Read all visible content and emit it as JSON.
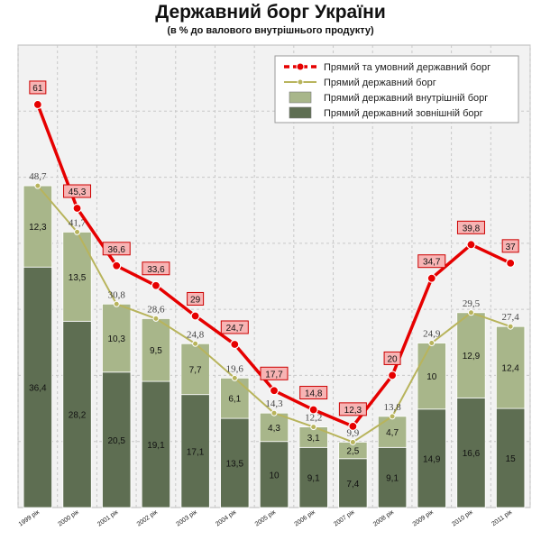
{
  "title": "Державний борг України",
  "subtitle": "(в % до валового внутрішнього продукту)",
  "chart_data": {
    "type": "bar",
    "stacked": true,
    "categories": [
      "1999 рік",
      "2000 рік",
      "2001 рік",
      "2002 рік",
      "2003 рік",
      "2004 рік",
      "2005 рік",
      "2006 рік",
      "2007 рік",
      "2008 рік",
      "2009 рік",
      "2010 рік",
      "2011 рік"
    ],
    "ylim": [
      0,
      70
    ],
    "grid": true,
    "legend_position": "top-right",
    "legend": [
      "Прямий та умовний державний борг",
      "Прямий державний борг",
      "Прямий державний внутрішній борг",
      "Прямий державний зовнішній борг"
    ],
    "series": [
      {
        "name": "Прямий державний зовнішній борг",
        "kind": "bar",
        "color": "#5e6e52",
        "values": [
          36.4,
          28.2,
          20.5,
          19.1,
          17.1,
          13.5,
          10,
          9.1,
          7.4,
          9.1,
          14.9,
          16.6,
          15
        ],
        "labels": [
          "36,4",
          "28,2",
          "20,5",
          "19,1",
          "17,1",
          "13,5",
          "10",
          "9,1",
          "7,4",
          "9,1",
          "14,9",
          "16,6",
          "15"
        ]
      },
      {
        "name": "Прямий державний внутрішній борг",
        "kind": "bar",
        "color": "#a8b68a",
        "values": [
          12.3,
          13.5,
          10.3,
          9.5,
          7.7,
          6.1,
          4.3,
          3.1,
          2.5,
          4.7,
          10,
          12.9,
          12.4
        ],
        "labels": [
          "12,3",
          "13,5",
          "10,3",
          "9,5",
          "7,7",
          "6,1",
          "4,3",
          "3,1",
          "2,5",
          "4,7",
          "10",
          "12,9",
          "12,4"
        ]
      },
      {
        "name": "Прямий державний борг",
        "kind": "line",
        "color": "#b8b45c",
        "values": [
          48.7,
          41.7,
          30.8,
          28.6,
          24.8,
          19.6,
          14.3,
          12.2,
          9.9,
          13.8,
          24.9,
          29.5,
          27.4
        ],
        "labels": [
          "48,7",
          "41,7",
          "30,8",
          "28,6",
          "24,8",
          "19,6",
          "14,3",
          "12,2",
          "9,9",
          "13,8",
          "24,9",
          "29,5",
          "27,4"
        ]
      },
      {
        "name": "Прямий та умовний державний борг",
        "kind": "line",
        "color": "#e60000",
        "values": [
          61,
          45.3,
          36.6,
          33.6,
          29,
          24.7,
          17.7,
          14.8,
          12.3,
          20,
          34.7,
          39.8,
          37
        ],
        "labels": [
          "61",
          "45,3",
          "36,6",
          "33,6",
          "29",
          "24,7",
          "17,7",
          "14,8",
          "12,3",
          "20",
          "34,7",
          "39,8",
          "37"
        ]
      }
    ]
  }
}
